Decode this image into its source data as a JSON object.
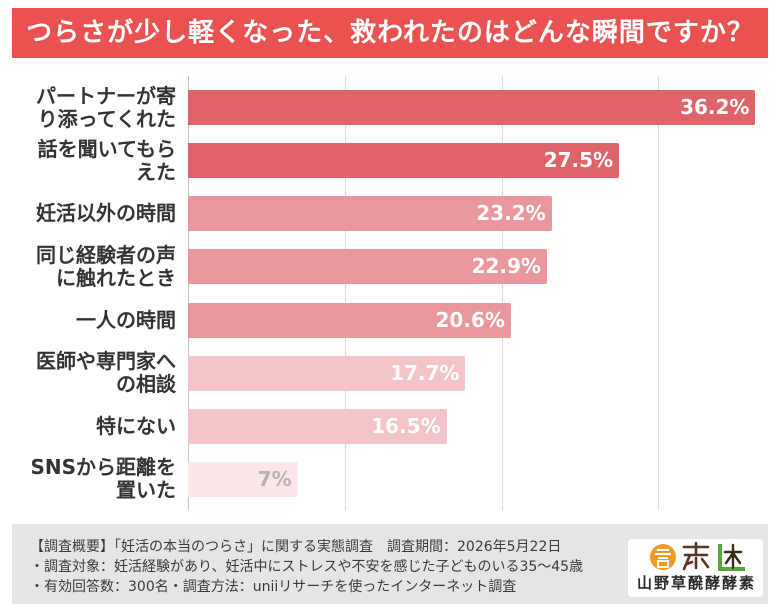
{
  "chart_data": {
    "type": "bar",
    "orientation": "horizontal",
    "title": "つらさが少し軽くなった、救われたのはどんな瞬間ですか？",
    "categories": [
      "パートナーが寄り添ってくれた",
      "話を聞いてもらえた",
      "妊活以外の時間",
      "同じ経験者の声に触れたとき",
      "一人の時間",
      "医師や専門家への相談",
      "特にない",
      "SNSから距離を置いた"
    ],
    "values": [
      36.2,
      27.5,
      23.2,
      22.9,
      20.6,
      17.7,
      16.5,
      7
    ],
    "data_labels": [
      "36.2%",
      "27.5%",
      "23.2%",
      "22.9%",
      "20.6%",
      "17.7%",
      "16.5%",
      "7%"
    ],
    "xlim": [
      0,
      37
    ],
    "grid": true,
    "x_gridlines": [
      0,
      10,
      20,
      30
    ],
    "bar_colors": [
      "#e0636b",
      "#e0636b",
      "#e9999e",
      "#e9999e",
      "#e9999e",
      "#f4c5c8",
      "#f4c5c8",
      "#fce6e8"
    ],
    "data_label_colors": [
      "#ffffff",
      "#ffffff",
      "#ffffff",
      "#ffffff",
      "#ffffff",
      "#ffffff",
      "#ffffff",
      "#bab1b2"
    ]
  },
  "colors": {
    "title_background": "#e95250",
    "title_text": "#ffffff",
    "label_text": "#333333",
    "gridline": "#dadada",
    "axis": "#c4c4c4",
    "footer_background": "#e5e5e5",
    "footer_text": "#3a3a3a"
  },
  "footer": {
    "notes": [
      "【調査概要】「妊活の本当のつらさ」に関する実態調査　調査期間：2026年5月22日",
      "・調査対象：妊活経験があり、妊活中にストレスや不安を感じた子どものいる35〜45歳",
      "・有効回答数：300名・調査方法：uniiリサーチを使ったインターネット調査"
    ]
  },
  "logo": {
    "brand_name": "山野草醗酵酵素",
    "mark_icons": [
      "orange-circle-glyph-icon",
      "brown-glyph-icon",
      "green-tree-glyph-icon"
    ]
  }
}
